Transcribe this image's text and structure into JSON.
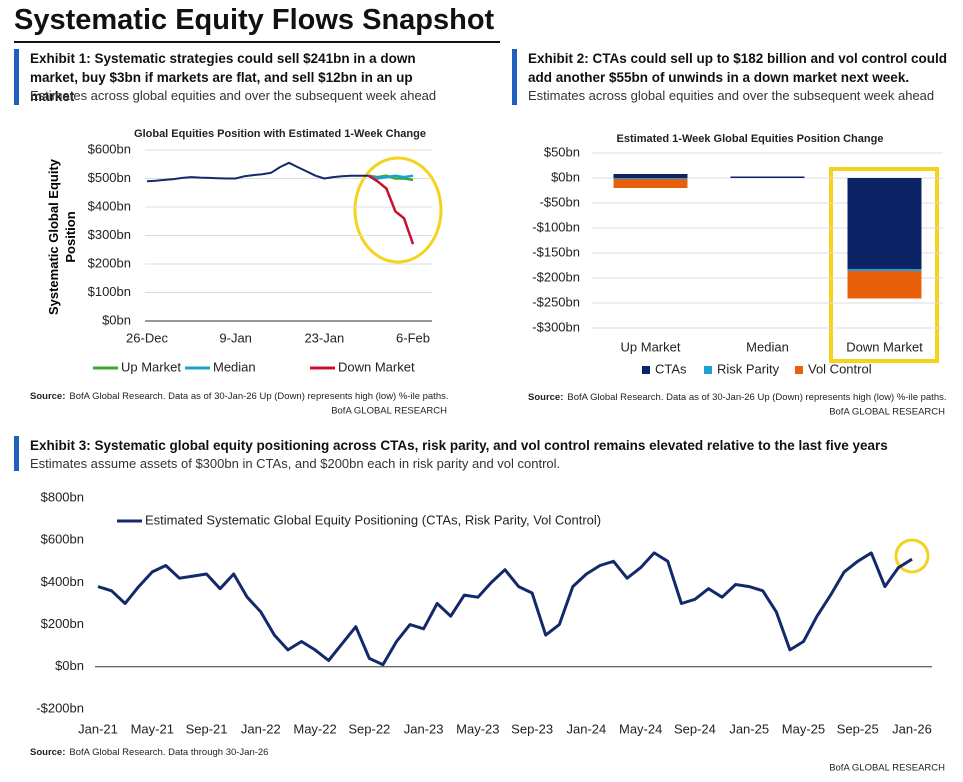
{
  "title": "Systematic Equity Flows Snapshot",
  "brand": "BofA GLOBAL RESEARCH",
  "chart_data": [
    {
      "type": "line",
      "exhibit": "Exhibit 1: Systematic strategies could sell $241bn in a down market, buy $3bn if markets are flat, and sell $12bn in an up market",
      "subtitle": "Estimates across global equities and over the subsequent week ahead",
      "title": "Global Equities Position with Estimated 1-Week Change",
      "ylabel": "Systematic Global Equity Position",
      "x": [
        "26-Dec",
        "29-Dec",
        "30-Dec",
        "31-Dec",
        "1-Jan",
        "2-Jan",
        "5-Jan",
        "6-Jan",
        "7-Jan",
        "8-Jan",
        "9-Jan",
        "12-Jan",
        "13-Jan",
        "14-Jan",
        "15-Jan",
        "16-Jan",
        "19-Jan",
        "20-Jan",
        "21-Jan",
        "22-Jan",
        "23-Jan",
        "26-Jan",
        "27-Jan",
        "28-Jan",
        "29-Jan",
        "30-Jan",
        "2-Feb",
        "3-Feb",
        "4-Feb",
        "5-Feb",
        "6-Feb"
      ],
      "xticks": [
        "26-Dec",
        "9-Jan",
        "23-Jan",
        "6-Feb"
      ],
      "values": [
        490,
        492,
        495,
        498,
        502,
        505,
        503,
        502,
        501,
        500,
        500,
        508,
        512,
        515,
        520,
        540,
        555,
        540,
        525,
        510,
        500,
        505,
        508,
        510,
        510,
        510,
        null,
        null,
        null,
        null,
        null
      ],
      "color": "#13296b",
      "series": [
        {
          "name": "Up Market",
          "color": "#3aa832",
          "values": [
            null,
            null,
            null,
            null,
            null,
            null,
            null,
            null,
            null,
            null,
            null,
            null,
            null,
            null,
            null,
            null,
            null,
            null,
            null,
            null,
            null,
            null,
            null,
            null,
            null,
            510,
            505,
            510,
            500,
            500,
            495
          ]
        },
        {
          "name": "Median",
          "color": "#1ea0d6",
          "values": [
            null,
            null,
            null,
            null,
            null,
            null,
            null,
            null,
            null,
            null,
            null,
            null,
            null,
            null,
            null,
            null,
            null,
            null,
            null,
            null,
            null,
            null,
            null,
            null,
            null,
            510,
            500,
            505,
            510,
            505,
            510
          ]
        },
        {
          "name": "Down Market",
          "color": "#c8102e",
          "values": [
            null,
            null,
            null,
            null,
            null,
            null,
            null,
            null,
            null,
            null,
            null,
            null,
            null,
            null,
            null,
            null,
            null,
            null,
            null,
            null,
            null,
            null,
            null,
            null,
            null,
            510,
            490,
            465,
            385,
            360,
            270
          ]
        }
      ],
      "ylim": [
        0,
        600
      ],
      "yticks": [
        {
          "value": 0,
          "label": "$0bn"
        },
        {
          "value": 100,
          "label": "$100bn"
        },
        {
          "value": 200,
          "label": "$200bn"
        },
        {
          "value": 300,
          "label": "$300bn"
        },
        {
          "value": 400,
          "label": "$400bn"
        },
        {
          "value": 500,
          "label": "$500bn"
        },
        {
          "value": 600,
          "label": "$600bn"
        }
      ],
      "grid": true,
      "source_label": "Source:",
      "source": "BofA Global Research.  Data as of 30-Jan-26 Up (Down) represents high (low) %-ile paths."
    },
    {
      "type": "stacked_bar",
      "exhibit": "Exhibit 2: CTAs could sell up to $182 billion and vol control could add another $55bn of unwinds in a down market next week.",
      "subtitle": "Estimates across global equities and over the subsequent week ahead",
      "title": "Estimated 1-Week Global Equities Position Change",
      "categories": [
        "Up Market",
        "Median",
        "Down Market"
      ],
      "series": [
        {
          "name": "CTAs",
          "color": "#0c2366",
          "values": [
            8,
            3,
            -182
          ]
        },
        {
          "name": "Risk Parity",
          "color": "#1ea0d6",
          "values": [
            -2,
            0,
            -4
          ]
        },
        {
          "name": "Vol Control",
          "color": "#e8600c",
          "values": [
            -18,
            0,
            -55
          ]
        }
      ],
      "ylim": [
        -300,
        50
      ],
      "yticks": [
        {
          "value": 50,
          "label": "$50bn"
        },
        {
          "value": 0,
          "label": "$0bn"
        },
        {
          "value": -50,
          "label": "-$50bn"
        },
        {
          "value": -100,
          "label": "-$100bn"
        },
        {
          "value": -150,
          "label": "-$150bn"
        },
        {
          "value": -200,
          "label": "-$200bn"
        },
        {
          "value": -250,
          "label": "-$250bn"
        },
        {
          "value": -300,
          "label": "-$300bn"
        }
      ],
      "grid": true,
      "source_label": "Source:",
      "source": "BofA Global Research. Data as of 30-Jan-26 Up (Down) represents high (low) %-ile paths."
    },
    {
      "type": "line",
      "exhibit": "Exhibit 3: Systematic global equity positioning across CTAs, risk parity, and vol control remains elevated relative to the last five years",
      "subtitle": "Estimates assume assets of $300bn in CTAs, and $200bn each in risk parity and vol control.",
      "x": [
        "Jan-21",
        "Feb-21",
        "Mar-21",
        "Apr-21",
        "May-21",
        "Jun-21",
        "Jul-21",
        "Aug-21",
        "Sep-21",
        "Oct-21",
        "Nov-21",
        "Dec-21",
        "Jan-22",
        "Feb-22",
        "Mar-22",
        "Apr-22",
        "May-22",
        "Jun-22",
        "Jul-22",
        "Aug-22",
        "Sep-22",
        "Oct-22",
        "Nov-22",
        "Dec-22",
        "Jan-23",
        "Feb-23",
        "Mar-23",
        "Apr-23",
        "May-23",
        "Jun-23",
        "Jul-23",
        "Aug-23",
        "Sep-23",
        "Oct-23",
        "Nov-23",
        "Dec-23",
        "Jan-24",
        "Feb-24",
        "Mar-24",
        "Apr-24",
        "May-24",
        "Jun-24",
        "Jul-24",
        "Aug-24",
        "Sep-24",
        "Oct-24",
        "Nov-24",
        "Dec-24",
        "Jan-25",
        "Feb-25",
        "Mar-25",
        "Apr-25",
        "May-25",
        "Jun-25",
        "Jul-25",
        "Aug-25",
        "Sep-25",
        "Oct-25",
        "Nov-25",
        "Dec-25",
        "Jan-26"
      ],
      "xticks": [
        "Jan-21",
        "May-21",
        "Sep-21",
        "Jan-22",
        "May-22",
        "Sep-22",
        "Jan-23",
        "May-23",
        "Sep-23",
        "Jan-24",
        "May-24",
        "Sep-24",
        "Jan-25",
        "May-25",
        "Sep-25",
        "Jan-26"
      ],
      "series": [
        {
          "name": "Estimated Systematic Global Equity Positioning (CTAs, Risk Parity, Vol Control)",
          "color": "#13296b",
          "values": [
            380,
            360,
            300,
            380,
            450,
            480,
            420,
            430,
            440,
            370,
            440,
            330,
            260,
            150,
            80,
            120,
            80,
            30,
            110,
            190,
            40,
            10,
            120,
            200,
            180,
            300,
            240,
            340,
            330,
            400,
            460,
            380,
            350,
            150,
            200,
            380,
            440,
            480,
            500,
            420,
            470,
            540,
            500,
            300,
            320,
            370,
            330,
            390,
            380,
            360,
            260,
            80,
            120,
            240,
            340,
            450,
            500,
            540,
            380,
            470,
            510
          ]
        }
      ],
      "ylim": [
        -200,
        800
      ],
      "yticks": [
        {
          "value": -200,
          "label": "-$200bn"
        },
        {
          "value": 0,
          "label": "$0bn"
        },
        {
          "value": 200,
          "label": "$200bn"
        },
        {
          "value": 400,
          "label": "$400bn"
        },
        {
          "value": 600,
          "label": "$600bn"
        },
        {
          "value": 800,
          "label": "$800bn"
        }
      ],
      "grid": false,
      "source_label": "Source:",
      "source": "BofA Global Research.  Data through 30-Jan-26"
    }
  ]
}
